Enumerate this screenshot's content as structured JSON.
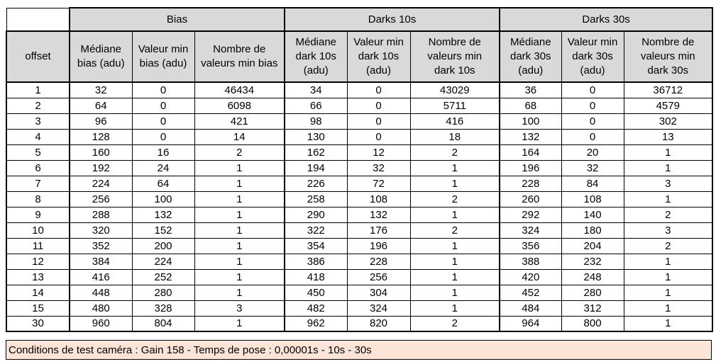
{
  "colors": {
    "header_bg": "#D9D9D9",
    "cell_bg": "#FFFFFF",
    "footer_bg": "#FCE4D6",
    "border": "#000000",
    "text": "#000000"
  },
  "table": {
    "groups": [
      {
        "label": "Bias"
      },
      {
        "label": "Darks 10s"
      },
      {
        "label": "Darks 30s"
      }
    ],
    "offset_header": "offset",
    "column_headers": [
      "Médiane\nbias (adu)",
      "Valeur min\nbias (adu)",
      "Nombre de\nvaleurs min bias",
      "Médiane\ndark 10s\n(adu)",
      "Valeur min\ndark 10s\n(adu)",
      "Nombre de\nvaleurs min\ndark 10s",
      "Médiane\ndark 30s\n(adu)",
      "Valeur min\ndark 30s\n(adu)",
      "Nombre de\nvaleurs min\ndark 30s"
    ],
    "rows": [
      {
        "offset": "1",
        "values": [
          "32",
          "0",
          "46434",
          "34",
          "0",
          "43029",
          "36",
          "0",
          "36712"
        ]
      },
      {
        "offset": "2",
        "values": [
          "64",
          "0",
          "6098",
          "66",
          "0",
          "5711",
          "68",
          "0",
          "4579"
        ]
      },
      {
        "offset": "3",
        "values": [
          "96",
          "0",
          "421",
          "98",
          "0",
          "416",
          "100",
          "0",
          "302"
        ]
      },
      {
        "offset": "4",
        "values": [
          "128",
          "0",
          "14",
          "130",
          "0",
          "18",
          "132",
          "0",
          "13"
        ]
      },
      {
        "offset": "5",
        "values": [
          "160",
          "16",
          "2",
          "162",
          "12",
          "2",
          "164",
          "20",
          "1"
        ]
      },
      {
        "offset": "6",
        "values": [
          "192",
          "24",
          "1",
          "194",
          "32",
          "1",
          "196",
          "32",
          "1"
        ]
      },
      {
        "offset": "7",
        "values": [
          "224",
          "64",
          "1",
          "226",
          "72",
          "1",
          "228",
          "84",
          "3"
        ]
      },
      {
        "offset": "8",
        "values": [
          "256",
          "100",
          "1",
          "258",
          "108",
          "2",
          "260",
          "108",
          "1"
        ]
      },
      {
        "offset": "9",
        "values": [
          "288",
          "132",
          "1",
          "290",
          "132",
          "1",
          "292",
          "140",
          "2"
        ]
      },
      {
        "offset": "10",
        "values": [
          "320",
          "152",
          "1",
          "322",
          "176",
          "2",
          "324",
          "180",
          "3"
        ]
      },
      {
        "offset": "11",
        "values": [
          "352",
          "200",
          "1",
          "354",
          "196",
          "1",
          "356",
          "204",
          "2"
        ]
      },
      {
        "offset": "12",
        "values": [
          "384",
          "224",
          "1",
          "386",
          "228",
          "1",
          "388",
          "232",
          "1"
        ]
      },
      {
        "offset": "13",
        "values": [
          "416",
          "252",
          "1",
          "418",
          "256",
          "1",
          "420",
          "248",
          "1"
        ]
      },
      {
        "offset": "14",
        "values": [
          "448",
          "280",
          "1",
          "450",
          "304",
          "1",
          "452",
          "280",
          "1"
        ]
      },
      {
        "offset": "15",
        "values": [
          "480",
          "328",
          "3",
          "482",
          "324",
          "1",
          "484",
          "312",
          "1"
        ]
      },
      {
        "offset": "30",
        "values": [
          "960",
          "804",
          "1",
          "962",
          "820",
          "2",
          "964",
          "800",
          "1"
        ]
      }
    ]
  },
  "footer": {
    "text": "Conditions de test caméra : Gain 158 - Temps de pose : 0,00001s - 10s - 30s"
  }
}
